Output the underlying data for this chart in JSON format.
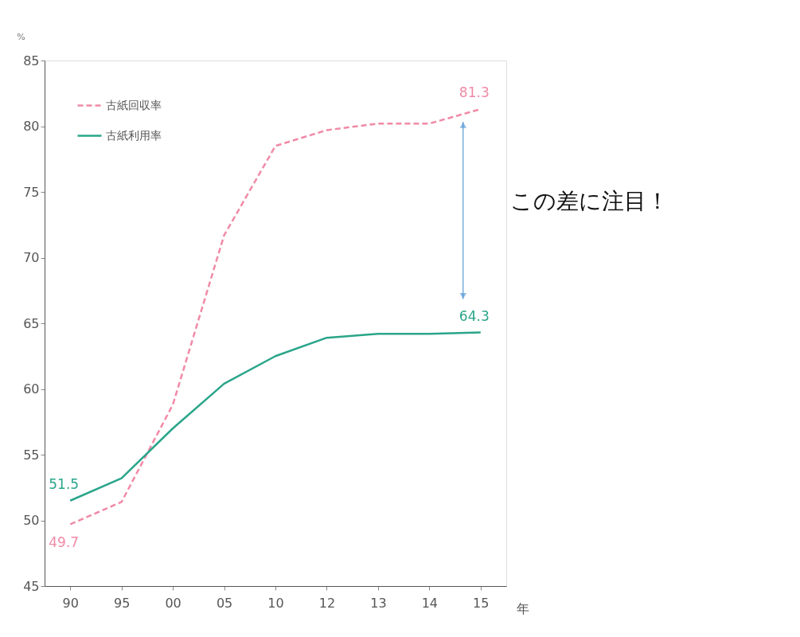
{
  "chart_data": {
    "type": "line",
    "ylabel": "%",
    "xlabel": "年",
    "categories": [
      "90",
      "95",
      "00",
      "05",
      "10",
      "12",
      "13",
      "14",
      "15"
    ],
    "series": [
      {
        "name": "古紙回収率",
        "color": "#f08aa6",
        "line_style": "dashed",
        "values": [
          49.7,
          51.4,
          58.8,
          71.7,
          78.5,
          79.7,
          80.2,
          80.2,
          81.3
        ],
        "value_labels": [
          "49.7",
          null,
          null,
          null,
          null,
          null,
          null,
          null,
          "81.3"
        ]
      },
      {
        "name": "古紙利用率",
        "color": "#2aa58a",
        "line_style": "solid",
        "values": [
          51.5,
          53.2,
          57.0,
          60.4,
          62.5,
          63.9,
          64.2,
          64.2,
          64.3
        ],
        "value_labels": [
          "51.5",
          null,
          null,
          null,
          null,
          null,
          null,
          null,
          "64.3"
        ]
      }
    ],
    "ylim": [
      45,
      85
    ],
    "yticks": [
      45,
      50,
      55,
      60,
      65,
      70,
      75,
      80,
      85
    ],
    "grid": false,
    "legend": "top left",
    "marker": "none",
    "annotations": [
      "この差に注目！"
    ]
  }
}
